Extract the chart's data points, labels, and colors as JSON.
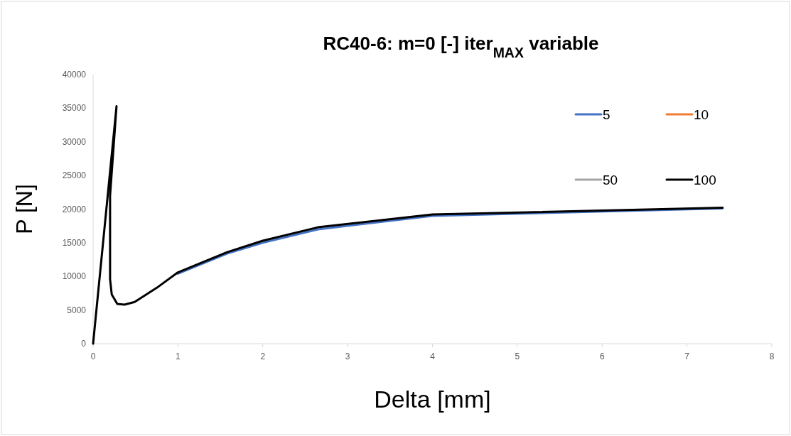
{
  "chart_data": {
    "type": "line",
    "title": "RC40-6:    m=0 [-]   iter$_{MAX}$ variable",
    "xlabel": "Delta [mm]",
    "ylabel": "P [N]",
    "xlim": [
      0,
      8
    ],
    "xticks": [
      0,
      1,
      2,
      3,
      4,
      5,
      6,
      7,
      8
    ],
    "ylim": [
      0,
      40000
    ],
    "yticks": [
      0,
      5000,
      10000,
      15000,
      20000,
      25000,
      30000,
      35000,
      40000
    ],
    "grid": false,
    "legend": "top right",
    "line_style": "solid",
    "marker": "none",
    "x": [
      0,
      0.276,
      0.2,
      0.2,
      0.22,
      0.285,
      0.37,
      0.49,
      0.75,
      1.0,
      1.58,
      2.0,
      2.65,
      4.0,
      7.42
    ],
    "series": [
      {
        "name": "5",
        "color": "#4472c4",
        "values": [
          null,
          null,
          null,
          null,
          null,
          null,
          null,
          null,
          null,
          10400,
          13400,
          15000,
          17000,
          19000,
          20100
        ]
      },
      {
        "name": "10",
        "color": "#ed7d31",
        "values": [
          null,
          null,
          null,
          null,
          null,
          null,
          null,
          null,
          null,
          null,
          null,
          null,
          null,
          null,
          null
        ]
      },
      {
        "name": "50",
        "color": "#a5a5a5",
        "values": [
          null,
          null,
          null,
          null,
          null,
          null,
          null,
          null,
          null,
          null,
          null,
          null,
          null,
          null,
          null
        ]
      },
      {
        "name": "100",
        "color": "#000000",
        "values": [
          0,
          35300,
          22000,
          9600,
          7300,
          5900,
          5800,
          6200,
          8300,
          10600,
          13600,
          15300,
          17300,
          19200,
          20200
        ]
      }
    ]
  }
}
